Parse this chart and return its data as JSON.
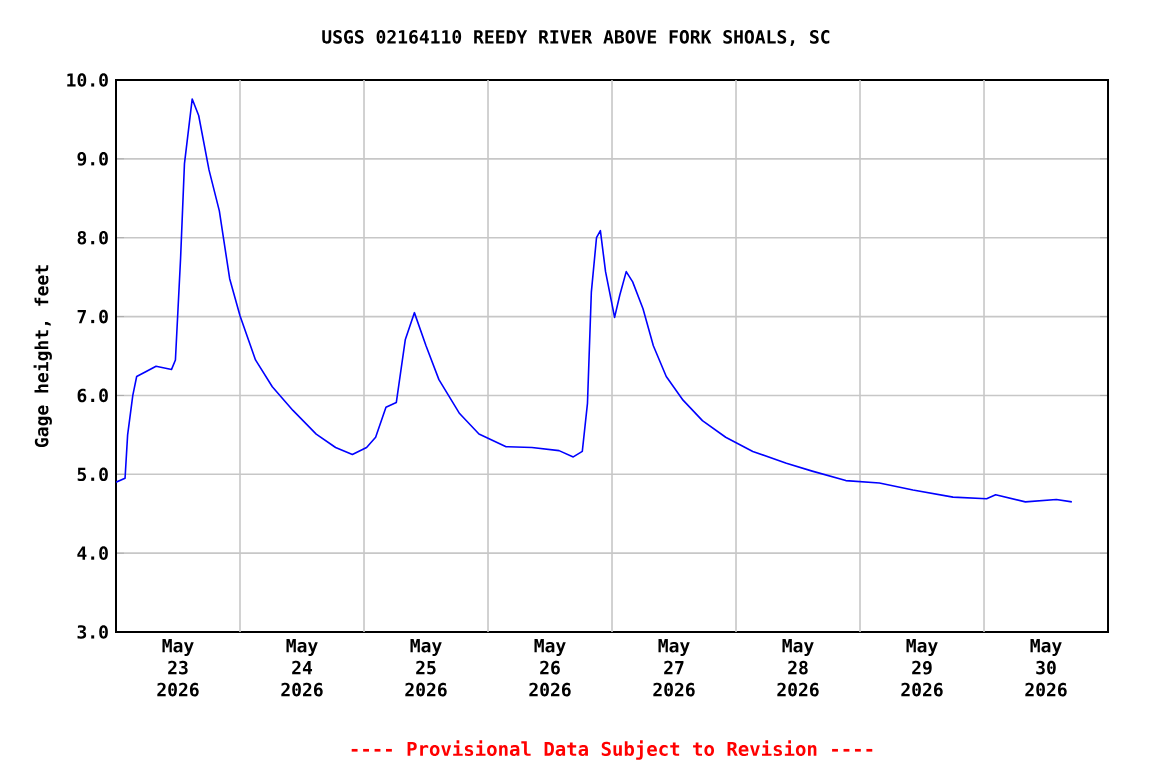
{
  "chart_data": {
    "type": "line",
    "title": "USGS 02164110 REEDY RIVER ABOVE FORK SHOALS, SC",
    "ylabel": "Gage height, feet",
    "x": [
      "2026-05-23T00:00",
      "2026-05-23T01:45",
      "2026-05-23T02:15",
      "2026-05-23T03:15",
      "2026-05-23T04:00",
      "2026-05-23T05:45",
      "2026-05-23T07:45",
      "2026-05-23T10:45",
      "2026-05-23T11:30",
      "2026-05-23T12:30",
      "2026-05-23T13:15",
      "2026-05-23T14:45",
      "2026-05-23T16:00",
      "2026-05-23T18:00",
      "2026-05-23T20:00",
      "2026-05-23T22:00",
      "2026-05-24T00:00",
      "2026-05-24T03:00",
      "2026-05-24T06:15",
      "2026-05-24T10:15",
      "2026-05-24T14:45",
      "2026-05-24T18:30",
      "2026-05-24T21:45",
      "2026-05-25T00:30",
      "2026-05-25T02:15",
      "2026-05-25T04:15",
      "2026-05-25T06:15",
      "2026-05-25T08:00",
      "2026-05-25T09:45",
      "2026-05-25T12:00",
      "2026-05-25T14:30",
      "2026-05-25T18:30",
      "2026-05-25T22:15",
      "2026-05-26T03:30",
      "2026-05-26T08:30",
      "2026-05-26T13:45",
      "2026-05-26T16:30",
      "2026-05-26T18:15",
      "2026-05-26T19:15",
      "2026-05-26T20:00",
      "2026-05-26T21:00",
      "2026-05-26T21:45",
      "2026-05-26T22:45",
      "2026-05-27T00:30",
      "2026-05-27T01:30",
      "2026-05-27T02:45",
      "2026-05-27T04:00",
      "2026-05-27T06:00",
      "2026-05-27T08:00",
      "2026-05-27T10:30",
      "2026-05-27T13:45",
      "2026-05-27T17:30",
      "2026-05-27T22:00",
      "2026-05-28T03:15",
      "2026-05-28T09:45",
      "2026-05-28T14:45",
      "2026-05-28T21:15",
      "2026-05-29T03:45",
      "2026-05-29T10:15",
      "2026-05-29T18:00",
      "2026-05-30T00:30",
      "2026-05-30T02:15",
      "2026-05-30T08:00",
      "2026-05-30T14:00",
      "2026-05-30T17:00"
    ],
    "series": [
      {
        "color": "#0000ff",
        "values": [
          4.9,
          4.95,
          5.5,
          6.0,
          6.24,
          6.3,
          6.37,
          6.33,
          6.45,
          7.74,
          8.94,
          9.76,
          9.55,
          8.86,
          8.34,
          7.48,
          7.01,
          6.45,
          6.11,
          5.81,
          5.51,
          5.34,
          5.25,
          5.34,
          5.47,
          5.85,
          5.91,
          6.71,
          7.05,
          6.63,
          6.2,
          5.77,
          5.51,
          5.35,
          5.34,
          5.3,
          5.22,
          5.29,
          5.9,
          7.31,
          8.0,
          8.09,
          7.57,
          6.99,
          7.27,
          7.57,
          7.44,
          7.1,
          6.63,
          6.24,
          5.94,
          5.68,
          5.47,
          5.29,
          5.14,
          5.04,
          4.92,
          4.89,
          4.8,
          4.71,
          4.69,
          4.74,
          4.65,
          4.68,
          4.65
        ]
      }
    ],
    "xlim": [
      "2026-05-23T00:00",
      "2026-05-31T00:00"
    ],
    "xticks": [
      {
        "value": "2026-05-23T12:00",
        "label": "May 23 2026"
      },
      {
        "value": "2026-05-24T12:00",
        "label": "May 24 2026"
      },
      {
        "value": "2026-05-25T12:00",
        "label": "May 25 2026"
      },
      {
        "value": "2026-05-26T12:00",
        "label": "May 26 2026"
      },
      {
        "value": "2026-05-27T12:00",
        "label": "May 27 2026"
      },
      {
        "value": "2026-05-28T12:00",
        "label": "May 28 2026"
      },
      {
        "value": "2026-05-29T12:00",
        "label": "May 29 2026"
      },
      {
        "value": "2026-05-30T12:00",
        "label": "May 30 2026"
      },
      {
        "value": "2026-05-24T00:00",
        "label": null
      },
      {
        "value": "2026-05-25T00:00",
        "label": null
      },
      {
        "value": "2026-05-26T00:00",
        "label": null
      },
      {
        "value": "2026-05-27T00:00",
        "label": null
      },
      {
        "value": "2026-05-28T00:00",
        "label": null
      },
      {
        "value": "2026-05-29T00:00",
        "label": null
      },
      {
        "value": "2026-05-30T00:00",
        "label": null
      }
    ],
    "ylim": [
      3,
      10
    ],
    "yticks": [
      {
        "value": 3,
        "label": "3.0"
      },
      {
        "value": 4,
        "label": "4.0"
      },
      {
        "value": 5,
        "label": "5.0"
      },
      {
        "value": 6,
        "label": "6.0"
      },
      {
        "value": 7,
        "label": "7.0"
      },
      {
        "value": 8,
        "label": "8.0"
      },
      {
        "value": 9,
        "label": "9.0"
      },
      {
        "value": 10,
        "label": "10.0"
      }
    ],
    "grid": true,
    "marker": "none",
    "line_style": "solid",
    "annotations": [
      "---- Provisional Data Subject to Revision ----"
    ]
  }
}
